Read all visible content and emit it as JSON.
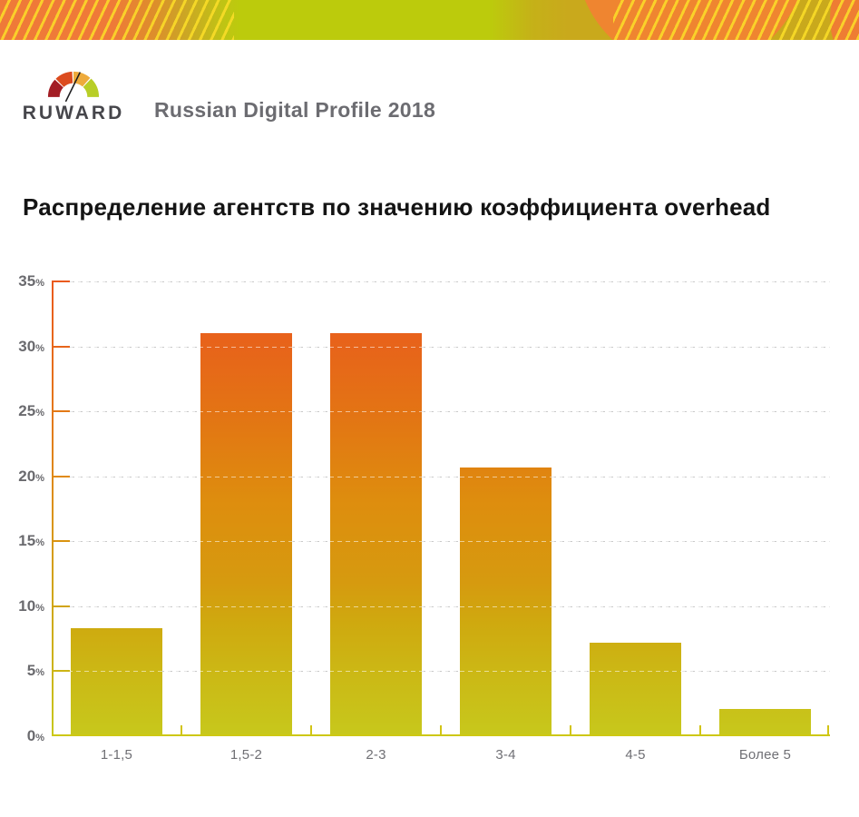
{
  "banner": {
    "colors": {
      "orange": "#ef7a38",
      "olive": "#c9a91c",
      "green": "#bccb0c",
      "stripe_yellow": "#fcde28"
    }
  },
  "header": {
    "brand": "RUWARD",
    "logo_icon": "gauge-icon",
    "subtitle": "Russian Digital Profile 2018",
    "brand_color": "#46464b",
    "subtitle_color": "#6c6c71",
    "gauge_segment_colors": [
      "#a31d24",
      "#dc4b1e",
      "#eeab3c",
      "#b8ce27"
    ]
  },
  "chart_title": "Распределение агентств по значению коэффициента overhead",
  "chart_data": {
    "type": "bar",
    "title": "Распределение агентств по значению коэффициента overhead",
    "categories": [
      "1-1,5",
      "1,5-2",
      "2-3",
      "3-4",
      "4-5",
      "Более 5"
    ],
    "values": [
      8.3,
      31,
      31,
      20.7,
      7.2,
      2.1
    ],
    "unit": "%",
    "xlabel": "",
    "ylabel": "",
    "ylim": [
      0,
      35
    ],
    "yticks": [
      0,
      5,
      10,
      15,
      20,
      25,
      30,
      35
    ],
    "ytick_labels": [
      "0%",
      "5%",
      "10%",
      "15%",
      "20%",
      "25%",
      "30%",
      "35%"
    ],
    "grid": "dashed-horizontal",
    "legend": "none",
    "bar_gradient": [
      "#c7c81c",
      "#cfa90f",
      "#de8d0e",
      "#e8611b"
    ],
    "axis_level_colors": {
      "35": "#ea5a1e",
      "30": "#e7651b",
      "25": "#e37815",
      "20": "#e08a0f",
      "15": "#da930f",
      "10": "#d1a30f",
      "5": "#cdb515",
      "0": "#c7c81c"
    }
  }
}
